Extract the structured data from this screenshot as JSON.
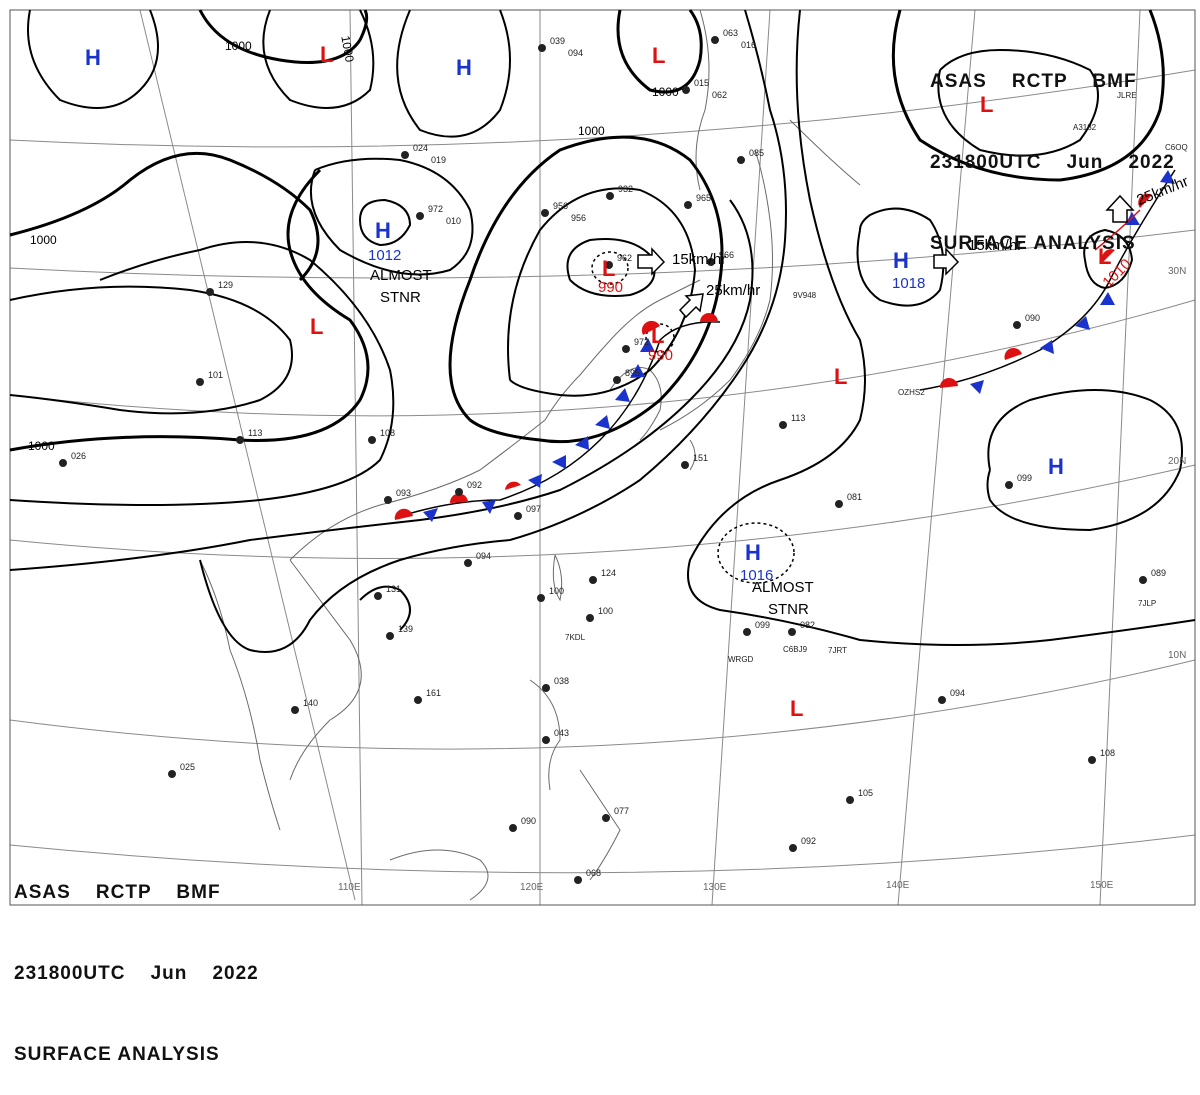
{
  "header": {
    "line1": "ASAS    RCTP    BMF",
    "line2": "231800UTC    Jun    2022",
    "line3": "SURFACE ANALYSIS"
  },
  "colors": {
    "high": "#1a33cc",
    "low": "#dd1111",
    "warm_front": "#dd1111",
    "cold_front": "#1a33cc",
    "isobar": "#000000",
    "grid": "#888888"
  },
  "longitudes": [
    "110E",
    "120E",
    "130E",
    "140E",
    "150E"
  ],
  "latitudes": [
    "30N",
    "20N",
    "10N"
  ],
  "isobar_labels": [
    "1000",
    "1000",
    "1000",
    "1000",
    "1000"
  ],
  "pressure_centers": [
    {
      "type": "H",
      "value": ""
    },
    {
      "type": "L",
      "value": ""
    },
    {
      "type": "H",
      "value": ""
    },
    {
      "type": "L",
      "value": ""
    },
    {
      "type": "L",
      "value": ""
    },
    {
      "type": "H",
      "value": "1012",
      "note": "ALMOST STNR"
    },
    {
      "type": "L",
      "value": "990"
    },
    {
      "type": "L",
      "value": "990"
    },
    {
      "type": "L",
      "value": ""
    },
    {
      "type": "H",
      "value": "1018"
    },
    {
      "type": "L",
      "value": "1010"
    },
    {
      "type": "H",
      "value": ""
    },
    {
      "type": "H",
      "value": "1016",
      "note": "ALMOST STNR"
    },
    {
      "type": "L",
      "value": ""
    }
  ],
  "motion_labels": [
    "15km/hr",
    "25km/hr",
    "15km/hr",
    "25km/hr"
  ],
  "station_labels": [
    "039",
    "063",
    "015",
    "024",
    "972",
    "956",
    "932",
    "965",
    "085",
    "962",
    "972",
    "895",
    "966",
    "026",
    "025",
    "038",
    "043",
    "077",
    "068",
    "092",
    "105",
    "094",
    "108",
    "089",
    "081",
    "099",
    "090",
    "082",
    "099",
    "094",
    "092",
    "097",
    "093",
    "108",
    "113",
    "101",
    "129",
    "151",
    "113",
    "161",
    "140",
    "139",
    "131",
    "124",
    "100",
    "100",
    "090",
    "094",
    "016",
    "062",
    "019",
    "010",
    "956"
  ],
  "station_codes": [
    "7KDL",
    "WRGD",
    "C6BJ9",
    "7JRT",
    "7JLP",
    "9V948",
    "OZHS2",
    "A3182",
    "JLRE",
    "C6OQ"
  ]
}
